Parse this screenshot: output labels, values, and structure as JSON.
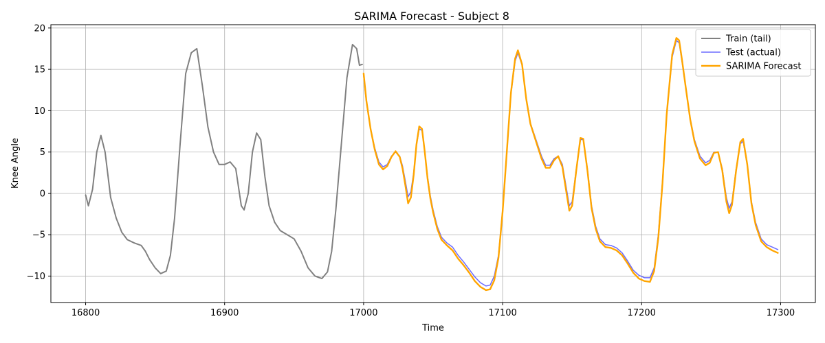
{
  "chart_data": {
    "type": "line",
    "title": "SARIMA Forecast - Subject 8",
    "xlabel": "Time",
    "ylabel": "Knee Angle",
    "xlim": [
      16775,
      17325
    ],
    "ylim": [
      -13.2,
      20.4
    ],
    "xticks": [
      16800,
      16900,
      17000,
      17100,
      17200,
      17300
    ],
    "yticks": [
      -10,
      -5,
      0,
      5,
      10,
      15,
      20
    ],
    "grid": true,
    "legend_position": "top-right",
    "series": [
      {
        "name": "Train (tail)",
        "color": "#808080",
        "width": 2,
        "opacity": 1,
        "x": [
          16800,
          16802,
          16805,
          16808,
          16811,
          16814,
          16818,
          16822,
          16826,
          16830,
          16835,
          16840,
          16843,
          16846,
          16850,
          16854,
          16858,
          16861,
          16864,
          16868,
          16872,
          16876,
          16880,
          16884,
          16888,
          16892,
          16896,
          16900,
          16904,
          16908,
          16912,
          16914,
          16917,
          16920,
          16923,
          16926,
          16929,
          16932,
          16936,
          16940,
          16945,
          16950,
          16955,
          16960,
          16965,
          16970,
          16974,
          16977,
          16980,
          16984,
          16988,
          16992,
          16995,
          16997,
          16999
        ],
        "y": [
          -0.2,
          -1.5,
          0.5,
          5,
          7,
          5,
          -0.5,
          -3,
          -4.7,
          -5.6,
          -6,
          -6.3,
          -7.0,
          -8.0,
          -9.0,
          -9.7,
          -9.4,
          -7.5,
          -3,
          6,
          14.5,
          17.0,
          17.5,
          13,
          8,
          5,
          3.5,
          3.5,
          3.8,
          3,
          -1.5,
          -2.0,
          0,
          5,
          7.3,
          6.5,
          2,
          -1.5,
          -3.5,
          -4.5,
          -5,
          -5.5,
          -7,
          -9,
          -10,
          -10.3,
          -9.5,
          -7,
          -2,
          6,
          14,
          18,
          17.5,
          15.5,
          15.6
        ]
      },
      {
        "name": "Test (actual)",
        "color": "#5b5bff",
        "width": 1.5,
        "opacity": 0.9,
        "x": [
          17000,
          17002,
          17005,
          17008,
          17011,
          17014,
          17017,
          17020,
          17023,
          17026,
          17028,
          17030,
          17032,
          17034,
          17036,
          17038,
          17040,
          17042,
          17044,
          17046,
          17048,
          17050,
          17053,
          17056,
          17060,
          17064,
          17068,
          17072,
          17076,
          17080,
          17084,
          17088,
          17091,
          17094,
          17097,
          17100,
          17103,
          17106,
          17109,
          17111,
          17114,
          17117,
          17120,
          17124,
          17128,
          17131,
          17134,
          17137,
          17140,
          17143,
          17146,
          17148,
          17150,
          17153,
          17156,
          17158,
          17161,
          17164,
          17167,
          17170,
          17174,
          17178,
          17182,
          17186,
          17190,
          17194,
          17198,
          17202,
          17206,
          17209,
          17212,
          17215,
          17218,
          17222,
          17225,
          17227,
          17229,
          17232,
          17235,
          17238,
          17242,
          17246,
          17249,
          17252,
          17255,
          17258,
          17261,
          17263,
          17265,
          17268,
          17271,
          17273,
          17276,
          17279,
          17282,
          17286,
          17290,
          17294,
          17298
        ],
        "y": [
          14.2,
          11,
          7.8,
          5.5,
          3.8,
          3.2,
          3.5,
          4.5,
          5,
          4.5,
          3.3,
          1.5,
          -0.4,
          0.2,
          2.5,
          5.8,
          7.8,
          7.6,
          5,
          2,
          -0.3,
          -2,
          -4,
          -5.3,
          -6,
          -6.5,
          -7.5,
          -8.3,
          -9.2,
          -10.1,
          -10.8,
          -11.2,
          -11.1,
          -10,
          -7.5,
          -2,
          5,
          12,
          16,
          17,
          15.5,
          11.5,
          8.5,
          6.5,
          4.5,
          3.4,
          3.4,
          4.2,
          4.5,
          3.5,
          0.5,
          -1.5,
          -1,
          3,
          6.5,
          6.5,
          3,
          -1.5,
          -4,
          -5.5,
          -6.2,
          -6.3,
          -6.6,
          -7.2,
          -8.2,
          -9.3,
          -9.9,
          -10.2,
          -10.2,
          -9,
          -5,
          1.5,
          9.5,
          16.5,
          18.5,
          18.2,
          16,
          12.5,
          9,
          6.5,
          4.5,
          3.7,
          4,
          5,
          5,
          3,
          -0.5,
          -1.8,
          -1,
          3,
          6,
          6.3,
          3.5,
          -1,
          -3.5,
          -5.5,
          -6.2,
          -6.5,
          -6.8
        ]
      },
      {
        "name": "SARIMA Forecast",
        "color": "#ffa500",
        "width": 2.4,
        "opacity": 1,
        "x": [
          17000,
          17002,
          17005,
          17008,
          17011,
          17014,
          17017,
          17020,
          17023,
          17026,
          17028,
          17030,
          17032,
          17034,
          17036,
          17038,
          17040,
          17042,
          17044,
          17046,
          17048,
          17050,
          17053,
          17056,
          17060,
          17064,
          17068,
          17072,
          17076,
          17080,
          17084,
          17088,
          17091,
          17094,
          17097,
          17100,
          17103,
          17106,
          17109,
          17111,
          17114,
          17117,
          17120,
          17124,
          17128,
          17131,
          17134,
          17137,
          17140,
          17143,
          17146,
          17148,
          17150,
          17153,
          17156,
          17158,
          17161,
          17164,
          17167,
          17170,
          17174,
          17178,
          17182,
          17186,
          17190,
          17194,
          17198,
          17202,
          17206,
          17209,
          17212,
          17215,
          17218,
          17222,
          17225,
          17227,
          17229,
          17232,
          17235,
          17238,
          17242,
          17246,
          17249,
          17252,
          17255,
          17258,
          17261,
          17263,
          17265,
          17268,
          17271,
          17273,
          17276,
          17279,
          17282,
          17286,
          17290,
          17294,
          17298
        ],
        "y": [
          14.5,
          11.2,
          7.8,
          5.3,
          3.5,
          2.9,
          3.3,
          4.4,
          5.1,
          4.4,
          3,
          1,
          -1.2,
          -0.5,
          2.2,
          5.9,
          8.1,
          7.8,
          5,
          1.8,
          -0.6,
          -2.3,
          -4.3,
          -5.6,
          -6.3,
          -6.9,
          -7.9,
          -8.7,
          -9.6,
          -10.6,
          -11.3,
          -11.7,
          -11.6,
          -10.5,
          -7.8,
          -2.2,
          5,
          12.2,
          16.3,
          17.3,
          15.6,
          11.4,
          8.4,
          6.3,
          4.2,
          3.1,
          3.1,
          4,
          4.5,
          3.2,
          0,
          -2.1,
          -1.5,
          2.8,
          6.7,
          6.6,
          2.8,
          -1.8,
          -4.3,
          -5.8,
          -6.5,
          -6.6,
          -6.9,
          -7.5,
          -8.5,
          -9.6,
          -10.3,
          -10.6,
          -10.7,
          -9.4,
          -5.4,
          1.2,
          9.5,
          16.8,
          18.8,
          18.5,
          16.2,
          12.5,
          8.9,
          6.3,
          4.2,
          3.4,
          3.7,
          4.9,
          5,
          2.8,
          -1,
          -2.4,
          -1.4,
          2.8,
          6.2,
          6.6,
          3.5,
          -1.2,
          -3.8,
          -5.8,
          -6.5,
          -6.9,
          -7.2
        ]
      }
    ]
  }
}
